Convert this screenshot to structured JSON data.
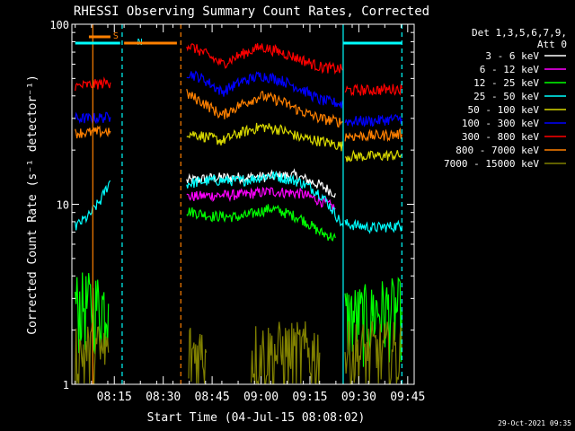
{
  "chart_data": {
    "type": "line",
    "title": "RHESSI Observing Summary Count Rates, Corrected",
    "xlabel": "Start Time (04-Jul-15 08:08:02)",
    "ylabel": "Corrected Count Rate (s⁻¹ detector⁻¹)",
    "y_scale": "log",
    "ylim": [
      1,
      100
    ],
    "y_ticks": [
      {
        "value": 1,
        "label": "1"
      },
      {
        "value": 10,
        "label": "10"
      },
      {
        "value": 100,
        "label": "100"
      }
    ],
    "xlim_minutes": [
      8.033,
      9.783
    ],
    "x_tick_labels": [
      {
        "minute": 8.25,
        "label": "08:15"
      },
      {
        "minute": 8.5,
        "label": "08:30"
      },
      {
        "minute": 8.75,
        "label": "08:45"
      },
      {
        "minute": 9.0,
        "label": "09:00"
      },
      {
        "minute": 9.25,
        "label": "09:15"
      },
      {
        "minute": 9.5,
        "label": "09:30"
      },
      {
        "minute": 9.75,
        "label": "09:45"
      }
    ],
    "legend": {
      "placement": "right",
      "header": [
        "Det 1,3,5,6,7,9,",
        "Att 0"
      ],
      "entries": [
        {
          "label": "3 - 6 keV",
          "color": "#ffffff"
        },
        {
          "label": "6 - 12 keV",
          "color": "#ff00ff"
        },
        {
          "label": "12 - 25 keV",
          "color": "#00ff00"
        },
        {
          "label": "25 - 50 keV",
          "color": "#00ffff"
        },
        {
          "label": "50 - 100 keV",
          "color": "#d8d800"
        },
        {
          "label": "100 - 300 keV",
          "color": "#0000ff"
        },
        {
          "label": "300 - 800 keV",
          "color": "#ff0000"
        },
        {
          "label": "800 - 7000 keV",
          "color": "#ff8000"
        },
        {
          "label": "7000 - 15000 keV",
          "color": "#808000"
        }
      ]
    },
    "flags": [
      {
        "label": "S",
        "color": "#ff8000",
        "from": 8.12,
        "to": 8.23
      },
      {
        "label": "N",
        "color": "#00ffff",
        "from": 8.05,
        "to": 8.28
      },
      {
        "label": "",
        "color": "#ff8000",
        "from": 8.3,
        "to": 8.57
      },
      {
        "label": "",
        "color": "#00ffff",
        "from": 9.42,
        "to": 9.72
      }
    ],
    "markers": [
      {
        "minute": 8.14,
        "color": "#ff8000",
        "style": "solid"
      },
      {
        "minute": 8.29,
        "color": "#00ffff",
        "style": "dashed"
      },
      {
        "minute": 8.59,
        "color": "#ff8000",
        "style": "dashed"
      },
      {
        "minute": 9.42,
        "color": "#00ffff",
        "style": "solid"
      },
      {
        "minute": 9.72,
        "color": "#00ffff",
        "style": "dashed"
      }
    ],
    "series": [
      {
        "name": "3 - 6 keV",
        "color": "#ffffff",
        "segments": [
          {
            "x": [
              8.62,
              8.75,
              9.0,
              9.17,
              9.3,
              9.38
            ],
            "y": [
              13.5,
              14.0,
              14.2,
              14.5,
              12.8,
              11.5
            ]
          }
        ]
      },
      {
        "name": "6 - 12 keV",
        "color": "#ff00ff",
        "segments": [
          {
            "x": [
              8.62,
              8.75,
              8.9,
              9.05,
              9.2,
              9.3,
              9.38
            ],
            "y": [
              11.0,
              11.2,
              11.3,
              11.8,
              11.5,
              10.5,
              9.5
            ]
          }
        ]
      },
      {
        "name": "12 - 25 keV",
        "color": "#00ff00",
        "segments": [
          {
            "x": [
              8.05,
              8.22
            ],
            "y": [
              2.8,
              2.8
            ]
          },
          {
            "x": [
              8.62,
              8.75,
              8.9,
              9.05,
              9.2,
              9.3,
              9.38
            ],
            "y": [
              9.2,
              8.6,
              8.5,
              9.5,
              8.4,
              7.0,
              6.5
            ]
          },
          {
            "x": [
              9.43,
              9.57
            ],
            "y": [
              2.4,
              2.4
            ]
          },
          {
            "x": [
              9.57,
              9.72
            ],
            "y": [
              2.6,
              2.6
            ]
          }
        ]
      },
      {
        "name": "25 - 50 keV",
        "color": "#00ffff",
        "segments": [
          {
            "x": [
              8.05,
              8.12,
              8.18,
              8.23
            ],
            "y": [
              7.5,
              8.6,
              10.5,
              13.5
            ]
          },
          {
            "x": [
              8.62,
              8.75,
              8.9,
              9.05,
              9.2,
              9.3,
              9.42
            ],
            "y": [
              13.0,
              13.6,
              13.5,
              14.5,
              13.3,
              11.5,
              7.5
            ]
          },
          {
            "x": [
              9.43,
              9.57,
              9.72
            ],
            "y": [
              7.8,
              7.4,
              7.6
            ]
          }
        ]
      },
      {
        "name": "50 - 100 keV",
        "color": "#d8d800",
        "segments": [
          {
            "x": [
              8.62,
              8.7,
              8.8,
              8.9,
              9.0,
              9.1,
              9.2,
              9.3,
              9.42
            ],
            "y": [
              25.0,
              24.0,
              22.5,
              25.0,
              27.0,
              26.0,
              23.5,
              22.5,
              21.0
            ]
          },
          {
            "x": [
              9.43,
              9.57,
              9.72
            ],
            "y": [
              18.5,
              18.5,
              18.8
            ]
          }
        ]
      },
      {
        "name": "100 - 300 keV",
        "color": "#0000ff",
        "segments": [
          {
            "x": [
              8.05,
              8.12,
              8.23
            ],
            "y": [
              30.0,
              30.0,
              30.5
            ]
          },
          {
            "x": [
              8.62,
              8.7,
              8.8,
              8.9,
              9.0,
              9.1,
              9.2,
              9.3,
              9.42
            ],
            "y": [
              54.0,
              50.0,
              42.0,
              48.0,
              52.0,
              49.0,
              44.0,
              38.0,
              36.0
            ]
          },
          {
            "x": [
              9.43,
              9.57,
              9.72
            ],
            "y": [
              29.0,
              29.0,
              30.0
            ]
          }
        ]
      },
      {
        "name": "300 - 800 keV",
        "color": "#ff0000",
        "segments": [
          {
            "x": [
              8.05,
              8.12,
              8.23
            ],
            "y": [
              45.0,
              46.0,
              47.5
            ]
          },
          {
            "x": [
              8.62,
              8.7,
              8.8,
              8.9,
              9.0,
              9.1,
              9.2,
              9.3,
              9.42
            ],
            "y": [
              77.0,
              70.0,
              60.0,
              68.0,
              75.0,
              70.0,
              64.0,
              58.0,
              56.0
            ]
          },
          {
            "x": [
              9.43,
              9.57,
              9.72
            ],
            "y": [
              43.0,
              43.0,
              44.0
            ]
          }
        ]
      },
      {
        "name": "800 - 7000 keV",
        "color": "#ff8000",
        "segments": [
          {
            "x": [
              8.05,
              8.12,
              8.23
            ],
            "y": [
              25.0,
              25.0,
              25.5
            ]
          },
          {
            "x": [
              8.62,
              8.7,
              8.8,
              8.9,
              9.0,
              9.1,
              9.2,
              9.3,
              9.42
            ],
            "y": [
              41.0,
              37.0,
              31.0,
              36.0,
              40.0,
              37.5,
              33.0,
              30.0,
              28.5
            ]
          },
          {
            "x": [
              9.43,
              9.57,
              9.72
            ],
            "y": [
              24.0,
              24.0,
              24.5
            ]
          }
        ]
      },
      {
        "name": "7000 - 15000 keV",
        "color": "#808000",
        "segments": [
          {
            "x": [
              8.05,
              8.22
            ],
            "y": [
              1.5,
              1.5
            ]
          },
          {
            "x": [
              8.63,
              8.72
            ],
            "y": [
              1.5,
              1.5
            ]
          },
          {
            "x": [
              8.95,
              9.3
            ],
            "y": [
              1.5,
              1.5
            ]
          },
          {
            "x": [
              9.43,
              9.72
            ],
            "y": [
              1.5,
              1.5
            ]
          }
        ]
      }
    ]
  },
  "footer": {
    "timestamp": "29-Oct-2021 09:35"
  }
}
